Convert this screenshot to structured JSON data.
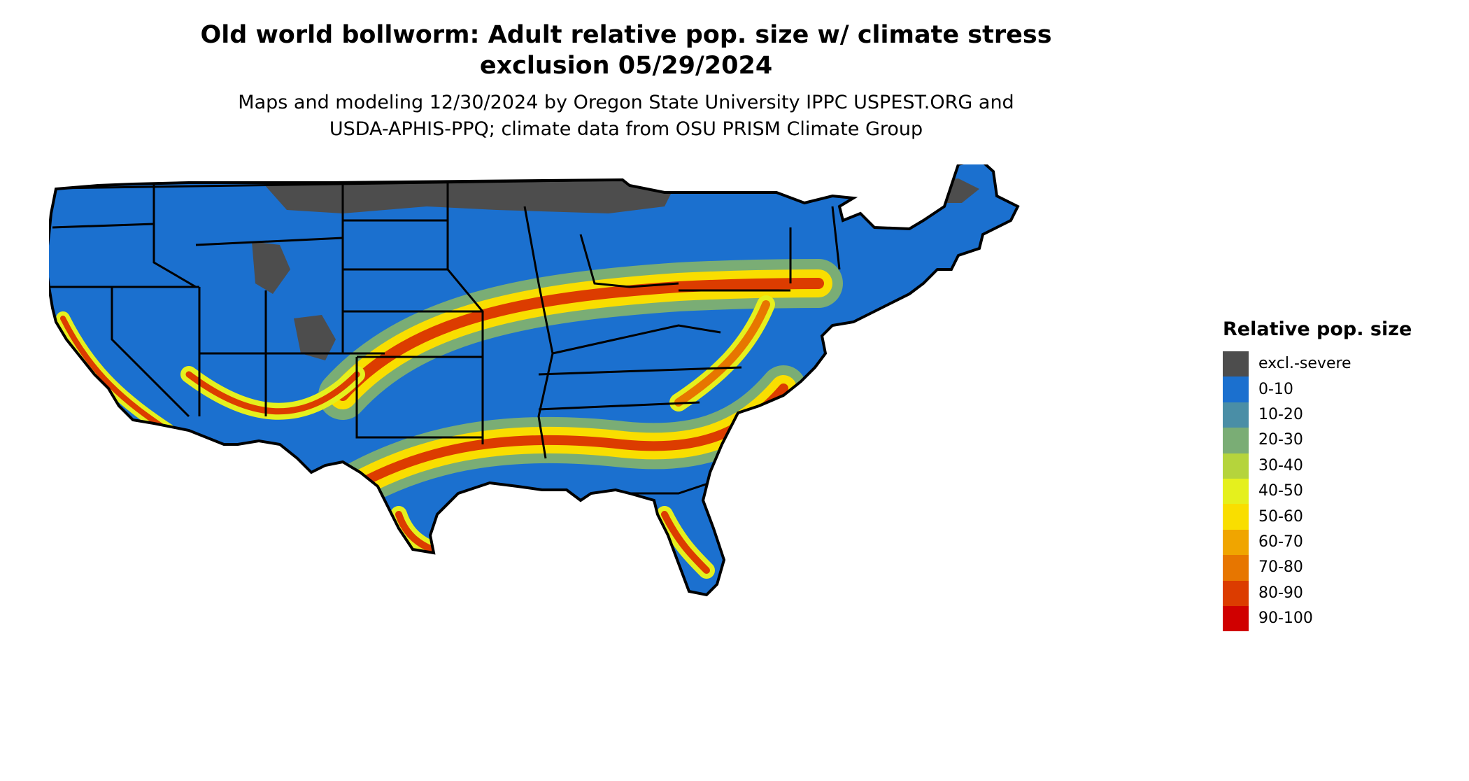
{
  "title": {
    "line1": "Old world bollworm: Adult relative pop. size w/ climate stress",
    "line2": "exclusion 05/29/2024"
  },
  "subtitle": {
    "line1": "Maps and modeling 12/30/2024 by Oregon State University IPPC USPEST.ORG and",
    "line2": "USDA-APHIS-PPQ; climate data from OSU PRISM Climate Group"
  },
  "legend": {
    "title": "Relative pop. size",
    "items": [
      {
        "label": "excl.-severe",
        "color": "#4d4d4d"
      },
      {
        "label": "0-10",
        "color": "#1b70cf"
      },
      {
        "label": "10-20",
        "color": "#4a8ea6"
      },
      {
        "label": "20-30",
        "color": "#7aad75"
      },
      {
        "label": "30-40",
        "color": "#b5d43c"
      },
      {
        "label": "40-50",
        "color": "#e5f01d"
      },
      {
        "label": "50-60",
        "color": "#f9de00"
      },
      {
        "label": "60-70",
        "color": "#f0a500"
      },
      {
        "label": "70-80",
        "color": "#e77600"
      },
      {
        "label": "80-90",
        "color": "#dc3c00"
      },
      {
        "label": "90-100",
        "color": "#d00000"
      }
    ]
  }
}
